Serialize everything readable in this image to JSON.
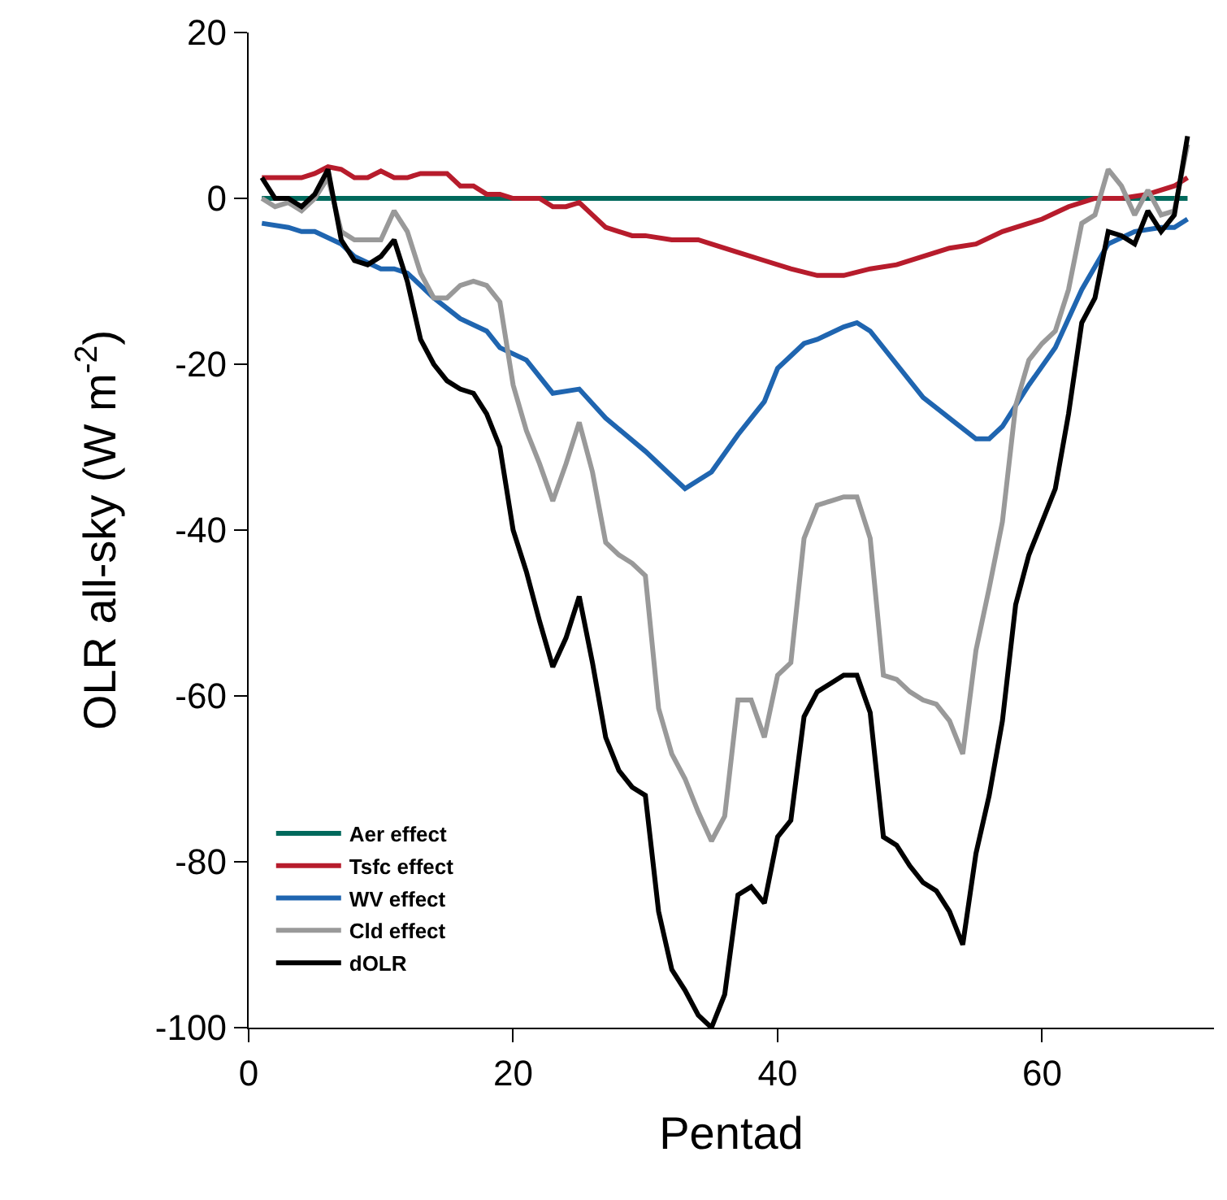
{
  "chart_data": {
    "type": "line",
    "xlabel": "Pentad",
    "ylabel": "OLR all-sky (W m$^{-2}$)",
    "xlim": [
      0,
      73
    ],
    "xticks": [
      0,
      20,
      40,
      60
    ],
    "ylim": [
      -100,
      20
    ],
    "yticks": [
      20,
      0,
      -20,
      -40,
      -60,
      -80,
      -100
    ],
    "legend": "bottom left",
    "marker": "none",
    "line_style": "solid",
    "series": [
      {
        "name": "Aer effect",
        "color": "#00695c",
        "x": [
          1,
          71
        ],
        "values": [
          0,
          0
        ]
      },
      {
        "name": "Tsfc effect",
        "color": "#b71c2c",
        "x": [
          1,
          2,
          4,
          5,
          6,
          7,
          8,
          9,
          10,
          11,
          12,
          13,
          15,
          16,
          17,
          18,
          19,
          20,
          22,
          23,
          24,
          25,
          26,
          27,
          28,
          29,
          30,
          32,
          34,
          35,
          37,
          39,
          41,
          43,
          45,
          47,
          49,
          51,
          53,
          55,
          57,
          59,
          60,
          62,
          64,
          66,
          68,
          70,
          71
        ],
        "values": [
          2.5,
          2.5,
          2.5,
          3,
          3.8,
          3.5,
          2.5,
          2.5,
          3.3,
          2.5,
          2.5,
          3,
          3,
          1.5,
          1.5,
          0.5,
          0.5,
          0,
          0,
          -1,
          -1,
          -0.5,
          -2,
          -3.5,
          -4,
          -4.5,
          -4.5,
          -5,
          -5,
          -5.5,
          -6.5,
          -7.5,
          -8.5,
          -9.3,
          -9.3,
          -8.5,
          -8,
          -7,
          -6,
          -5.5,
          -4,
          -3,
          -2.5,
          -1,
          0,
          0,
          0.5,
          1.5,
          2.5
        ]
      },
      {
        "name": "WV effect",
        "color": "#1f65b0",
        "x": [
          1,
          3,
          4,
          5,
          7,
          8,
          10,
          11,
          12,
          14,
          16,
          18,
          19,
          21,
          23,
          25,
          27,
          30,
          32,
          33,
          34,
          35,
          37,
          39,
          40,
          42,
          43,
          45,
          46,
          47,
          49,
          51,
          53,
          55,
          56,
          57,
          59,
          61,
          63,
          65,
          67,
          69,
          70,
          71
        ],
        "values": [
          -3,
          -3.5,
          -4,
          -4,
          -5.5,
          -7,
          -8.5,
          -8.5,
          -9,
          -12,
          -14.5,
          -16,
          -18,
          -19.5,
          -23.5,
          -23,
          -26.5,
          -30.5,
          -33.5,
          -35,
          -34,
          -33,
          -28.5,
          -24.5,
          -20.5,
          -17.5,
          -17,
          -15.5,
          -15,
          -16,
          -20,
          -24,
          -26.5,
          -29,
          -29,
          -27.5,
          -22.5,
          -18,
          -11,
          -5.5,
          -4,
          -3.5,
          -3.5,
          -2.5
        ]
      },
      {
        "name": "Cld effect",
        "color": "#999999",
        "x": [
          1,
          2,
          3,
          4,
          5,
          6,
          7,
          8,
          9,
          10,
          11,
          12,
          13,
          14,
          15,
          16,
          17,
          18,
          19,
          20,
          21,
          22,
          23,
          24,
          25,
          26,
          27,
          28,
          29,
          30,
          31,
          32,
          33,
          34,
          35,
          36,
          37,
          38,
          39,
          40,
          41,
          42,
          43,
          44,
          45,
          46,
          47,
          48,
          49,
          50,
          51,
          52,
          53,
          54,
          55,
          56,
          57,
          58,
          59,
          60,
          61,
          62,
          63,
          64,
          65,
          66,
          67,
          68,
          69,
          70,
          71
        ],
        "values": [
          0,
          -1,
          -0.5,
          -1.5,
          0,
          2.5,
          -4,
          -5,
          -5,
          -5,
          -1.5,
          -4,
          -9,
          -12,
          -12,
          -10.5,
          -10,
          -10.5,
          -12.5,
          -22.5,
          -28,
          -32,
          -36.5,
          -32,
          -27,
          -33,
          -41.5,
          -43,
          -44,
          -45.5,
          -61.5,
          -67,
          -70,
          -74,
          -77.5,
          -74.5,
          -60.5,
          -60.5,
          -65,
          -57.5,
          -56,
          -41,
          -37,
          -36.5,
          -36,
          -36,
          -41,
          -57.5,
          -58,
          -59.5,
          -60.5,
          -61,
          -63,
          -67,
          -54.5,
          -47,
          -39,
          -25,
          -19.5,
          -17.5,
          -16,
          -11,
          -3,
          -2,
          3.5,
          1.5,
          -2,
          1,
          -2,
          -1.5,
          6.5
        ]
      },
      {
        "name": "dOLR",
        "color": "#000000",
        "x": [
          1,
          2,
          3,
          4,
          5,
          6,
          7,
          8,
          9,
          10,
          11,
          12,
          13,
          14,
          15,
          16,
          17,
          18,
          19,
          20,
          21,
          22,
          23,
          24,
          25,
          26,
          27,
          28,
          29,
          30,
          31,
          32,
          33,
          34,
          35,
          36,
          37,
          38,
          39,
          40,
          41,
          42,
          43,
          44,
          45,
          46,
          47,
          48,
          49,
          50,
          51,
          52,
          53,
          54,
          55,
          56,
          57,
          58,
          59,
          60,
          61,
          62,
          63,
          64,
          65,
          66,
          67,
          68,
          69,
          70,
          71
        ],
        "values": [
          2.5,
          0,
          0,
          -1,
          0.5,
          3.5,
          -5,
          -7.5,
          -8,
          -7,
          -5,
          -10,
          -17,
          -20,
          -22,
          -23,
          -23.5,
          -26,
          -30,
          -40,
          -45,
          -51,
          -56.5,
          -53,
          -48,
          -56,
          -65,
          -69,
          -71,
          -72,
          -86,
          -93,
          -95.5,
          -98.5,
          -100,
          -96,
          -84,
          -83,
          -85,
          -77,
          -75,
          -62.5,
          -59.5,
          -58.5,
          -57.5,
          -57.5,
          -62,
          -77,
          -78,
          -80.5,
          -82.5,
          -83.5,
          -86,
          -90,
          -79,
          -72,
          -63,
          -49,
          -43,
          -39,
          -35,
          -26,
          -15,
          -12,
          -4,
          -4.5,
          -5.5,
          -1.5,
          -4,
          -2,
          7.5
        ]
      }
    ]
  }
}
